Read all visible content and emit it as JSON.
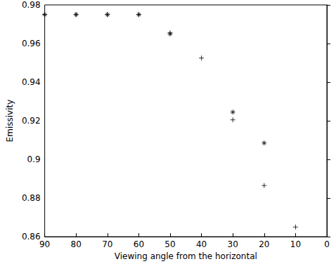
{
  "chart_data": {
    "type": "scatter",
    "x_label": "Viewing angle from the horizontal",
    "y_label": "Emissivity",
    "x": [
      90,
      80,
      70,
      60,
      50,
      40,
      30,
      20,
      10
    ],
    "series": [
      {
        "color": "#000000",
        "marker": "star",
        "values": [
          0.975,
          0.975,
          0.975,
          0.975,
          0.965,
          null,
          0.9245,
          0.9085,
          null
        ]
      },
      {
        "color": "#000000",
        "marker": "plus",
        "values": [
          0.975,
          0.975,
          0.975,
          0.975,
          0.9655,
          0.9525,
          0.9205,
          0.8865,
          0.865
        ]
      }
    ],
    "xlim": [
      90,
      0
    ],
    "xticks": [
      90,
      80,
      70,
      60,
      50,
      40,
      30,
      20,
      10,
      0
    ],
    "ylim": [
      0.86,
      0.98
    ],
    "yticks": [
      0.86,
      0.88,
      0.9,
      0.92,
      0.94,
      0.96,
      0.98
    ],
    "grid": false
  }
}
